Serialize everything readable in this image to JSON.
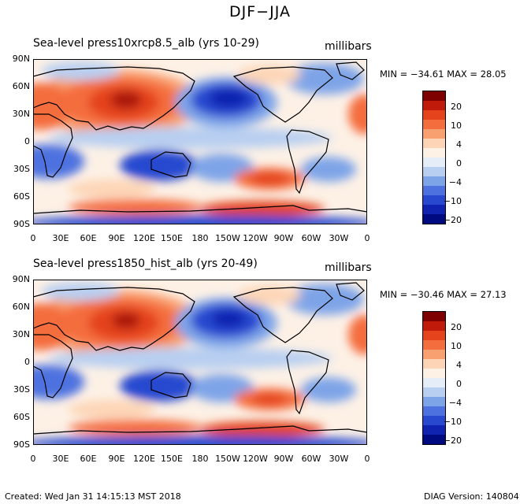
{
  "figure_title": "DJF−JJA",
  "panels": [
    {
      "title": "Sea-level press10xrcp8.5_alb (yrs 10-29)",
      "units": "millibars",
      "min_max": "MIN = −34.61  MAX =  28.05"
    },
    {
      "title": "Sea-level press1850_hist_alb (yrs 20-49)",
      "units": "millibars",
      "min_max": "MIN = −30.46  MAX =  27.13"
    }
  ],
  "lat_labels": [
    "90N",
    "60N",
    "30N",
    "0",
    "30S",
    "60S",
    "90S"
  ],
  "lon_labels": [
    "0",
    "30E",
    "60E",
    "90E",
    "120E",
    "150E",
    "180",
    "150W",
    "120W",
    "90W",
    "60W",
    "30W",
    "0"
  ],
  "colorbar_labels": [
    "20",
    "10",
    "4",
    "0",
    "−4",
    "−10",
    "−20"
  ],
  "colorbar_colors": [
    "#7f0000",
    "#c01a0a",
    "#e4431c",
    "#f46d3c",
    "#f9a070",
    "#fdd5b6",
    "#fdf1e6",
    "#e5edf9",
    "#b8cff1",
    "#7ea4e8",
    "#4d72e0",
    "#2848d0",
    "#0f23b0",
    "#000a80"
  ],
  "footer": {
    "created": "Created: Wed Jan 31 14:15:13 MST 2018",
    "version": "DIAG Version: 140804"
  }
}
